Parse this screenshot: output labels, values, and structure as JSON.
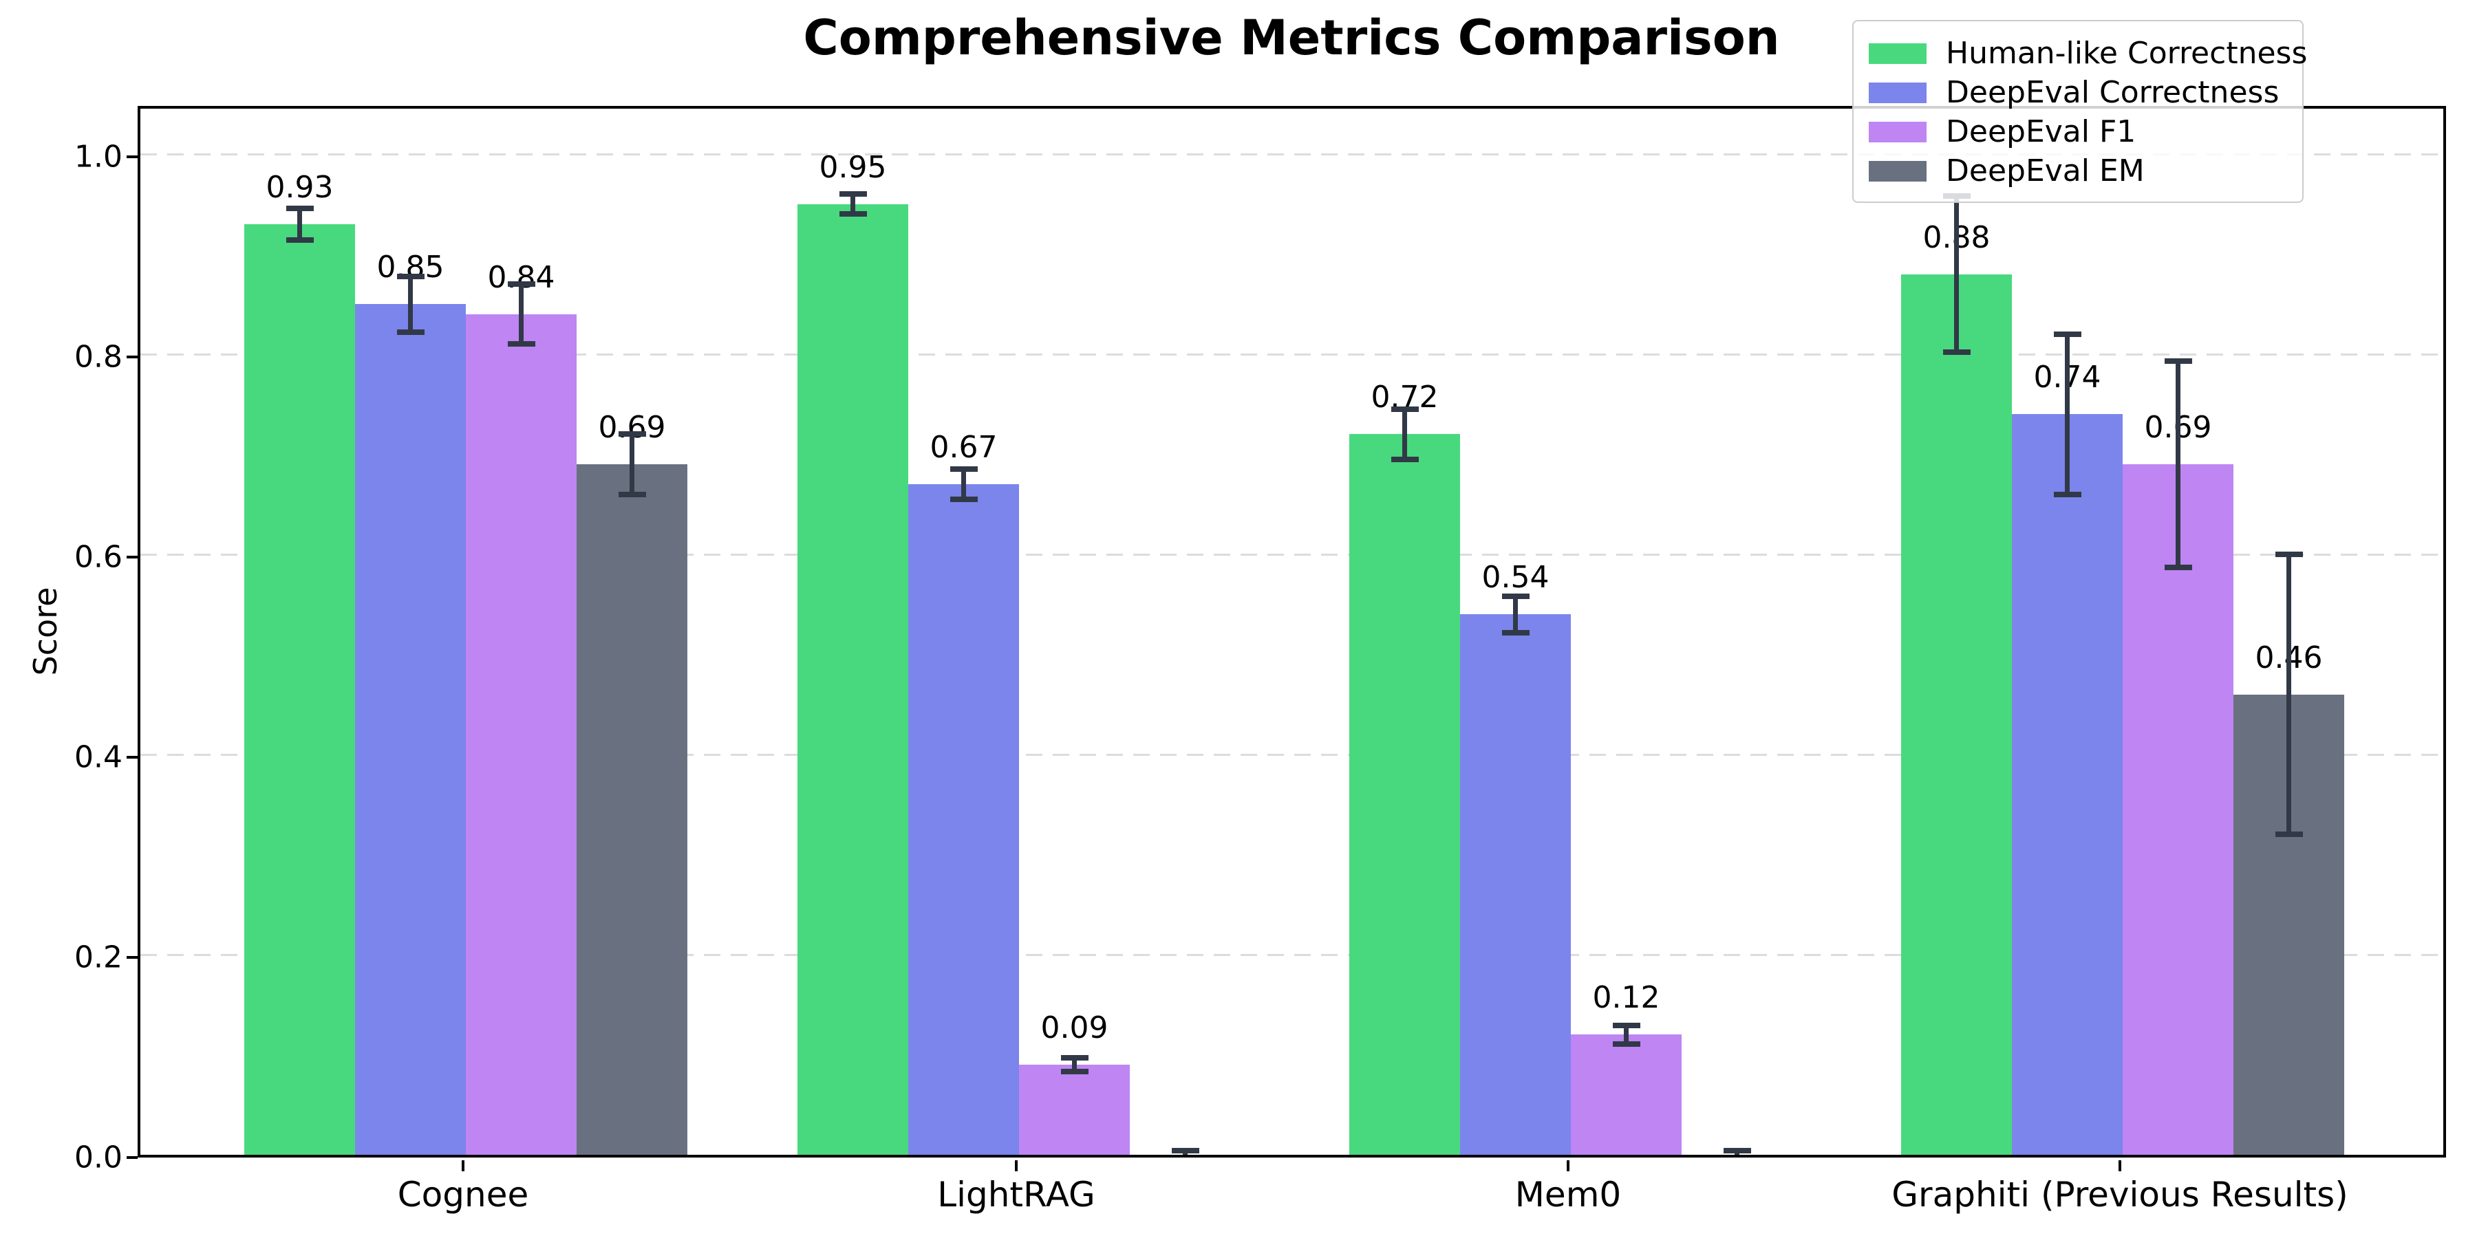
{
  "chart_data": {
    "type": "bar",
    "title": "Comprehensive Metrics Comparison",
    "xlabel": "",
    "ylabel": "Score",
    "ylim": [
      0,
      1.05
    ],
    "grid": "horizontal dashed",
    "legend_position": "upper right",
    "categories": [
      "Cognee",
      "LightRAG",
      "Mem0",
      "Graphiti (Previous Results)"
    ],
    "yticks": [
      "0.0",
      "0.2",
      "0.4",
      "0.6",
      "0.8",
      "1.0"
    ],
    "ytick_values": [
      0.0,
      0.2,
      0.4,
      0.6,
      0.8,
      1.0
    ],
    "series": [
      {
        "name": "Human-like Correctness",
        "color": "#48d97e",
        "values": [
          0.93,
          0.95,
          0.72,
          0.88
        ],
        "errors": [
          0.016,
          0.01,
          0.025,
          0.078
        ],
        "labels": [
          "0.93",
          "0.95",
          "0.72",
          "0.88"
        ]
      },
      {
        "name": "DeepEval Correctness",
        "color": "#7b85ec",
        "values": [
          0.85,
          0.67,
          0.54,
          0.74
        ],
        "errors": [
          0.028,
          0.015,
          0.018,
          0.08
        ],
        "labels": [
          "0.85",
          "0.67",
          "0.54",
          "0.74"
        ]
      },
      {
        "name": "DeepEval F1",
        "color": "#be85f3",
        "values": [
          0.84,
          0.09,
          0.12,
          0.69
        ],
        "errors": [
          0.03,
          0.007,
          0.009,
          0.103
        ],
        "labels": [
          "0.84",
          "0.09",
          "0.12",
          "0.69"
        ]
      },
      {
        "name": "DeepEval EM",
        "color": "#697180",
        "values": [
          0.69,
          0.0,
          0.0,
          0.46
        ],
        "errors": [
          0.03,
          0.004,
          0.004,
          0.14
        ],
        "labels": [
          "0.69",
          "",
          "",
          "0.46"
        ]
      }
    ],
    "colors": {
      "error_bar": "#313947",
      "gridline": "#dcdcdc",
      "spine": "#000000",
      "background": "#ffffff"
    }
  },
  "layout_note": "grouped bar chart, 4 groups x 4 series, value labels above bars with error bars"
}
